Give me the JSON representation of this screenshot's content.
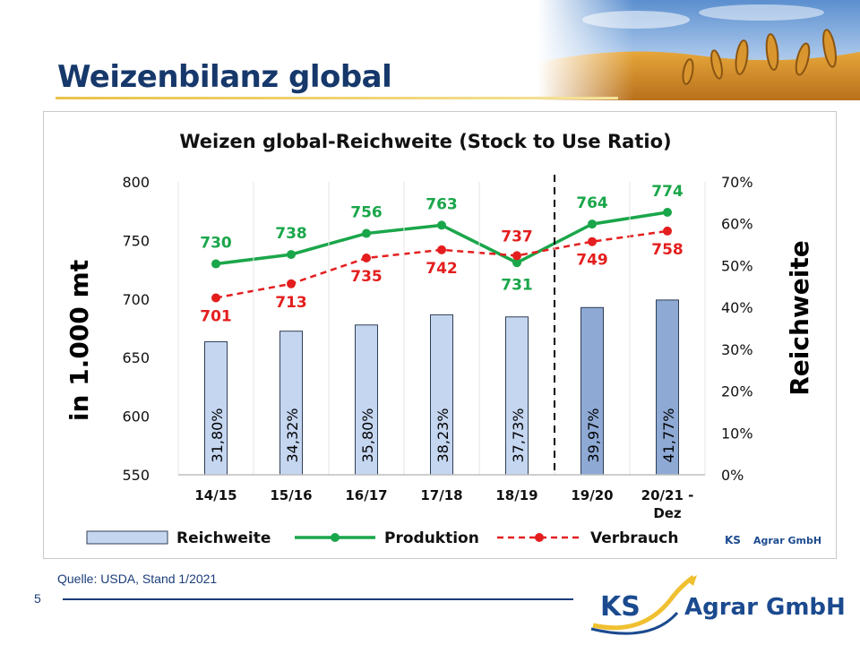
{
  "slide": {
    "title": "Weizenbilanz global",
    "source": "Quelle:  USDA, Stand 1/2021",
    "page_number": "5"
  },
  "logo": {
    "ks": "KS",
    "agrar": "Agrar GmbH"
  },
  "chart_data": {
    "type": "bar",
    "title": "Weizen global-Reichweite (Stock to Use Ratio)",
    "categories": [
      "14/15",
      "15/16",
      "16/17",
      "17/18",
      "18/19",
      "19/20",
      "20/21 -\nDez"
    ],
    "ylabel": "in  1.000 mt",
    "y2label": "Reichweite",
    "ylim": [
      550,
      800
    ],
    "y_ticks": [
      "800",
      "750",
      "700",
      "650",
      "600",
      "550"
    ],
    "y2lim": [
      0,
      0.7
    ],
    "y2_ticks": [
      "70%",
      "60%",
      "50%",
      "40%",
      "30%",
      "20%",
      "10%",
      "0%"
    ],
    "series": [
      {
        "name": "Reichweite",
        "kind": "bar",
        "axis": "right",
        "values": [
          0.318,
          0.3432,
          0.358,
          0.3823,
          0.3773,
          0.3997,
          0.4177
        ],
        "labels": [
          "31,80%",
          "34,32%",
          "35,80%",
          "38,23%",
          "37,73%",
          "39,97%",
          "41,77%"
        ],
        "color": "#c5d6f0",
        "forecast_color": "#8ea9d4"
      },
      {
        "name": "Produktion",
        "kind": "line",
        "axis": "left",
        "values": [
          730,
          738,
          756,
          763,
          731,
          764,
          774
        ],
        "color": "#1aa64a"
      },
      {
        "name": "Verbrauch",
        "kind": "line-dashed",
        "axis": "left",
        "values": [
          701,
          713,
          735,
          742,
          737,
          749,
          758
        ],
        "color": "#e41e1e"
      }
    ],
    "forecast_from_index": 5,
    "grid": false,
    "legend": "bottom"
  },
  "colors": {
    "title_blue": "#16386b",
    "accent_gold": "#e9c34a"
  }
}
